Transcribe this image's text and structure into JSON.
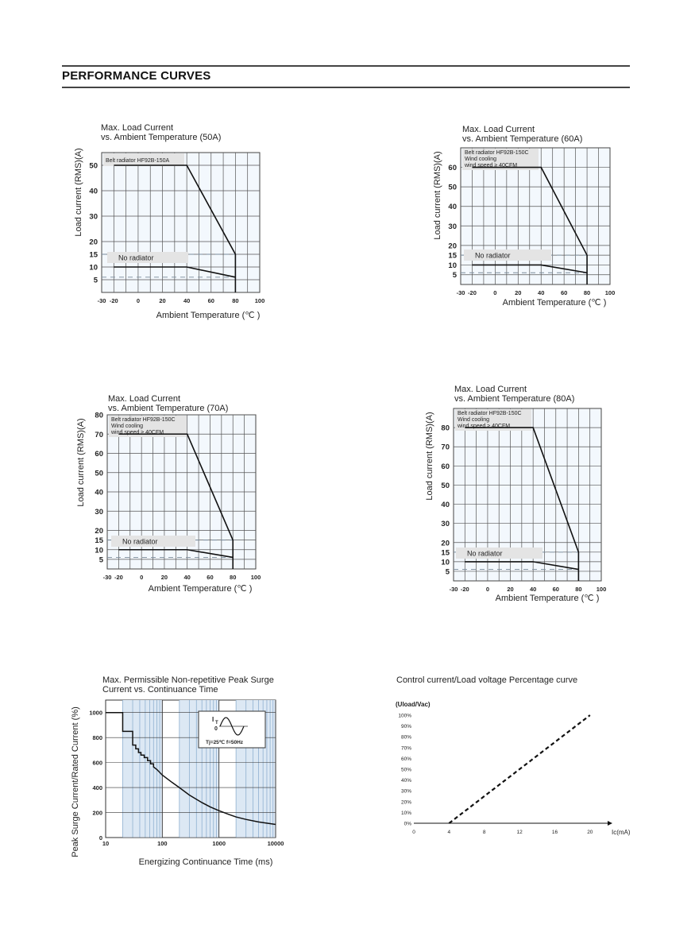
{
  "page": {
    "heading": "PERFORMANCE CURVES"
  },
  "chart_data": [
    {
      "id": "c50",
      "type": "line",
      "title": "Max. Load Current",
      "subtitle": "vs. Ambient Temperature (50A)",
      "xlabel": "Ambient Temperature (℃ )",
      "ylabel": "Load current (RMS)(A)",
      "xlim": [
        -30,
        100
      ],
      "ylim": [
        0,
        55
      ],
      "xticks": [
        -30,
        -20,
        0,
        20,
        40,
        60,
        80,
        100
      ],
      "yticks": [
        5,
        10,
        15,
        20,
        30,
        40,
        50
      ],
      "series": [
        {
          "name": "Belt radiator HF92B-150A",
          "x": [
            -20,
            40,
            80,
            80
          ],
          "y": [
            50,
            50,
            15,
            0
          ]
        },
        {
          "name": "No radiator",
          "x": [
            -20,
            40,
            80
          ],
          "y": [
            10,
            10,
            6
          ]
        }
      ],
      "dashed_levels": [
        15,
        6
      ],
      "legend_box": [
        "Belt radiator  HF92B-150A"
      ],
      "label_box": "No radiator"
    },
    {
      "id": "c60",
      "type": "line",
      "title": "Max. Load Current",
      "subtitle": "vs. Ambient Temperature (60A)",
      "xlabel": "Ambient Temperature (℃ )",
      "ylabel": "Load current (RMS)(A)",
      "xlim": [
        -30,
        100
      ],
      "ylim": [
        0,
        70
      ],
      "xticks": [
        -30,
        -20,
        0,
        20,
        40,
        60,
        80,
        100
      ],
      "yticks": [
        5,
        10,
        15,
        20,
        30,
        40,
        50,
        60
      ],
      "series": [
        {
          "name": "Belt radiator HF92B-150C",
          "x": [
            -20,
            40,
            80,
            80
          ],
          "y": [
            60,
            60,
            15,
            0
          ]
        },
        {
          "name": "No radiator",
          "x": [
            -20,
            40,
            80
          ],
          "y": [
            10,
            10,
            6
          ]
        }
      ],
      "dashed_levels": [
        15,
        6
      ],
      "legend_box": [
        "Belt radiator  HF92B-150C",
        "Wind cooling",
        "wind speed ≥ 40CFM"
      ],
      "label_box": "No radiator"
    },
    {
      "id": "c70",
      "type": "line",
      "title": "Max. Load Current",
      "subtitle": "vs. Ambient Temperature (70A)",
      "xlabel": "Ambient Temperature (℃ )",
      "ylabel": "Load current (RMS)(A)",
      "xlim": [
        -30,
        100
      ],
      "ylim": [
        0,
        80
      ],
      "xticks": [
        -30,
        -20,
        0,
        20,
        40,
        60,
        80,
        100
      ],
      "yticks": [
        5,
        10,
        15,
        20,
        30,
        40,
        50,
        60,
        70,
        80
      ],
      "series": [
        {
          "name": "Belt radiator HF92B-150C",
          "x": [
            -20,
            40,
            80,
            80
          ],
          "y": [
            70,
            70,
            15,
            0
          ]
        },
        {
          "name": "No radiator",
          "x": [
            -20,
            40,
            80
          ],
          "y": [
            10,
            10,
            6
          ]
        }
      ],
      "dashed_levels": [
        15,
        6
      ],
      "legend_box": [
        "Belt radiator  HF92B-150C",
        "Wind cooling",
        "wind speed ≥ 40CFM"
      ],
      "label_box": "No radiator"
    },
    {
      "id": "c80",
      "type": "line",
      "title": "Max. Load Current",
      "subtitle": "vs. Ambient Temperature (80A)",
      "xlabel": "Ambient Temperature (℃ )",
      "ylabel": "Load current (RMS)(A)",
      "xlim": [
        -30,
        100
      ],
      "ylim": [
        0,
        90
      ],
      "xticks": [
        -30,
        -20,
        0,
        20,
        40,
        60,
        80,
        100
      ],
      "yticks": [
        5,
        10,
        15,
        20,
        30,
        40,
        50,
        60,
        70,
        80
      ],
      "series": [
        {
          "name": "Belt radiator HF92B-150C",
          "x": [
            -20,
            40,
            80,
            80
          ],
          "y": [
            80,
            80,
            15,
            0
          ]
        },
        {
          "name": "No radiator",
          "x": [
            -20,
            40,
            80
          ],
          "y": [
            10,
            10,
            6
          ]
        }
      ],
      "dashed_levels": [
        15,
        6
      ],
      "legend_box": [
        "Belt radiator  HF92B-150C",
        "Wind cooling",
        "wind speed ≥ 40CFM"
      ],
      "label_box": "No radiator"
    },
    {
      "id": "surge",
      "type": "line",
      "title": "Max. Permissible Non-repetitive Peak Surge",
      "subtitle": "Current vs. Continuance Time",
      "xlabel": "Energizing Continuance Time (ms)",
      "ylabel": "Peak Surge Current/Rated Current (%)",
      "xscale": "log",
      "xlim": [
        10,
        10000
      ],
      "ylim": [
        0,
        1100
      ],
      "xtick_labels": [
        "10",
        "100",
        "1000",
        "10000"
      ],
      "ytick_labels": [
        "0",
        "200",
        "400",
        "600",
        "800",
        "1000"
      ],
      "series": [
        {
          "name": "surge",
          "x": [
            10,
            20,
            20,
            30,
            30,
            34,
            34,
            38,
            38,
            42,
            42,
            48,
            48,
            55,
            55,
            62,
            62,
            70,
            70,
            80,
            100,
            150,
            200,
            300,
            500,
            700,
            1000,
            1500,
            2000,
            3000,
            5000,
            10000
          ],
          "y": [
            1000,
            1000,
            850,
            850,
            740,
            740,
            710,
            710,
            680,
            680,
            660,
            660,
            640,
            640,
            615,
            615,
            590,
            590,
            565,
            545,
            500,
            440,
            400,
            340,
            280,
            245,
            215,
            185,
            165,
            145,
            125,
            105
          ]
        }
      ],
      "inset": {
        "symbol": "I",
        "subscript": "T",
        "origin": "0",
        "conditions": "Tj=25℃    f=50Hz"
      }
    },
    {
      "id": "ctrl",
      "type": "line",
      "title": "Control current/Load voltage Percentage curve",
      "ylabel": "(Uload/Vac)",
      "xlabel": "Ic(mA)",
      "xlim": [
        0,
        22
      ],
      "ylim": [
        0,
        100
      ],
      "xtick_labels": [
        "0",
        "4",
        "8",
        "12",
        "16",
        "20"
      ],
      "ytick_labels": [
        "0%",
        "10%",
        "20%",
        "30%",
        "40%",
        "50%",
        "60%",
        "70%",
        "80%",
        "90%",
        "100%"
      ],
      "series": [
        {
          "name": "percentage",
          "x": [
            4,
            20
          ],
          "y": [
            0,
            100
          ]
        }
      ]
    }
  ]
}
